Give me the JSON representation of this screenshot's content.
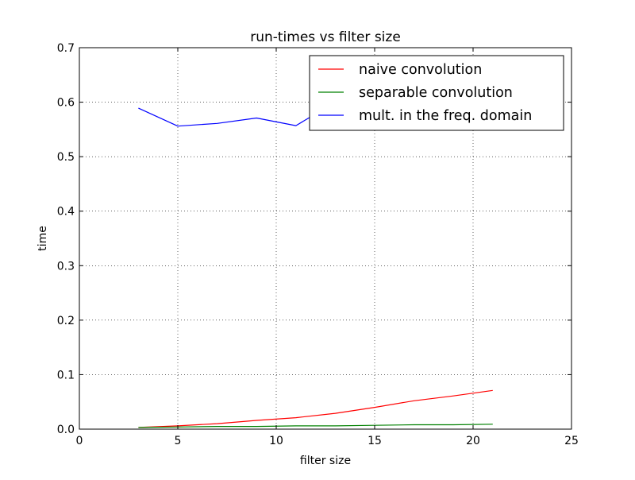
{
  "chart_data": {
    "type": "line",
    "title": "run-times vs filter size",
    "xlabel": "filter size",
    "ylabel": "time",
    "xlim": [
      0,
      25
    ],
    "ylim": [
      0,
      0.7
    ],
    "xticks": [
      {
        "value": 0,
        "label": "0"
      },
      {
        "value": 5,
        "label": "5"
      },
      {
        "value": 10,
        "label": "10"
      },
      {
        "value": 15,
        "label": "15"
      },
      {
        "value": 20,
        "label": "20"
      },
      {
        "value": 25,
        "label": "25"
      }
    ],
    "yticks": [
      {
        "value": 0.0,
        "label": "0.0"
      },
      {
        "value": 0.1,
        "label": "0.1"
      },
      {
        "value": 0.2,
        "label": "0.2"
      },
      {
        "value": 0.3,
        "label": "0.3"
      },
      {
        "value": 0.4,
        "label": "0.4"
      },
      {
        "value": 0.5,
        "label": "0.5"
      },
      {
        "value": 0.6,
        "label": "0.6"
      },
      {
        "value": 0.7,
        "label": "0.7"
      }
    ],
    "grid": true,
    "legend_position": "top-right",
    "x": [
      3,
      5,
      7,
      9,
      11,
      13,
      15,
      17,
      19,
      21
    ],
    "series": [
      {
        "name": "naive convolution",
        "color": "#ff0000",
        "values": [
          0.003,
          0.006,
          0.01,
          0.016,
          0.021,
          0.029,
          0.04,
          0.052,
          0.061,
          0.071
        ]
      },
      {
        "name": "separable convolution",
        "color": "#008000",
        "values": [
          0.003,
          0.004,
          0.005,
          0.005,
          0.006,
          0.006,
          0.007,
          0.008,
          0.008,
          0.009
        ]
      },
      {
        "name": "mult. in the freq. domain",
        "color": "#0000ff",
        "values": [
          0.589,
          0.556,
          0.561,
          0.571,
          0.557,
          0.6,
          0.6,
          0.6,
          0.6,
          0.6
        ]
      }
    ]
  }
}
